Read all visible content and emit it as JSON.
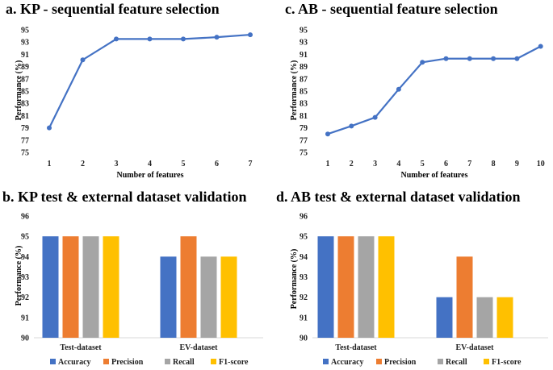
{
  "chart_data": [
    {
      "id": "a",
      "type": "line",
      "title": "a. KP - sequential feature selection",
      "xlabel": "Number of features",
      "ylabel": "Performance (%)",
      "x": [
        1,
        2,
        3,
        4,
        5,
        6,
        7
      ],
      "values": [
        79,
        90.1,
        93.5,
        93.5,
        93.5,
        93.8,
        94.2
      ],
      "ylim": [
        75,
        95
      ],
      "yticks": [
        75,
        77,
        79,
        81,
        83,
        85,
        87,
        89,
        91,
        93,
        95
      ],
      "color": "#4472C4"
    },
    {
      "id": "c",
      "type": "line",
      "title": "c. AB - sequential feature selection",
      "xlabel": "Number of features",
      "ylabel": "Performance (%)",
      "x": [
        1,
        2,
        3,
        4,
        5,
        6,
        7,
        8,
        9,
        10
      ],
      "values": [
        78,
        79.3,
        80.7,
        85.3,
        89.7,
        90.3,
        90.3,
        90.3,
        90.3,
        92.3
      ],
      "ylim": [
        75,
        95
      ],
      "yticks": [
        75,
        77,
        79,
        81,
        83,
        85,
        87,
        89,
        91,
        93,
        95
      ],
      "color": "#4472C4"
    },
    {
      "id": "b",
      "type": "bar",
      "title": "b. KP test & external dataset validation",
      "xlabel": "",
      "ylabel": "Performance (%)",
      "categories": [
        "Test-dataset",
        "EV-dataset"
      ],
      "series": [
        {
          "name": "Accuracy",
          "values": [
            95,
            94
          ],
          "color": "#4472C4"
        },
        {
          "name": "Precision",
          "values": [
            95,
            95
          ],
          "color": "#ED7D31"
        },
        {
          "name": "Recall",
          "values": [
            95,
            94
          ],
          "color": "#A5A5A5"
        },
        {
          "name": "F1-score",
          "values": [
            95,
            94
          ],
          "color": "#FFC000"
        }
      ],
      "ylim": [
        90,
        96
      ],
      "yticks": [
        90,
        91,
        92,
        93,
        94,
        95,
        96
      ]
    },
    {
      "id": "d",
      "type": "bar",
      "title": "d. AB test & external dataset validation",
      "xlabel": "",
      "ylabel": "Performance (%)",
      "categories": [
        "Test-dataset",
        "EV-dataset"
      ],
      "series": [
        {
          "name": "Accuracy",
          "values": [
            95,
            92
          ],
          "color": "#4472C4"
        },
        {
          "name": "Precision",
          "values": [
            95,
            94
          ],
          "color": "#ED7D31"
        },
        {
          "name": "Recall",
          "values": [
            95,
            92
          ],
          "color": "#A5A5A5"
        },
        {
          "name": "F1-score",
          "values": [
            95,
            92
          ],
          "color": "#FFC000"
        }
      ],
      "ylim": [
        90,
        96
      ],
      "yticks": [
        90,
        91,
        92,
        93,
        94,
        95,
        96
      ]
    }
  ]
}
